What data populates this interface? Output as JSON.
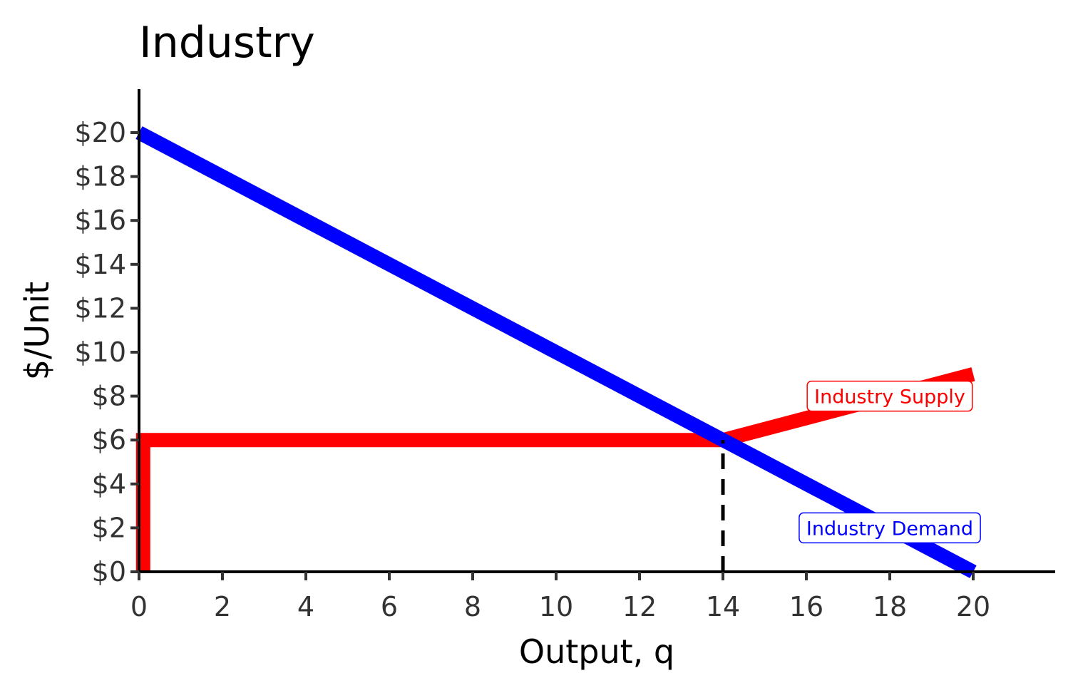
{
  "chart_data": {
    "type": "line",
    "title": "Industry",
    "xlabel": "Output, q",
    "ylabel": "$/Unit",
    "xlim": [
      0,
      22
    ],
    "ylim": [
      0,
      22
    ],
    "x_ticks": [
      0,
      2,
      4,
      6,
      8,
      10,
      12,
      14,
      16,
      18,
      20
    ],
    "y_ticks": [
      0,
      2,
      4,
      6,
      8,
      10,
      12,
      14,
      16,
      18,
      20
    ],
    "y_tick_labels": [
      "$0",
      "$2",
      "$4",
      "$6",
      "$8",
      "$10",
      "$12",
      "$14",
      "$16",
      "$18",
      "$20"
    ],
    "grid": false,
    "legend": "none",
    "series": [
      {
        "name": "Industry Supply",
        "color": "#ff0000",
        "points": [
          [
            0.1,
            0
          ],
          [
            0.1,
            6
          ],
          [
            14,
            6
          ],
          [
            20,
            9
          ]
        ]
      },
      {
        "name": "Industry Demand",
        "color": "#0000ff",
        "points": [
          [
            0,
            20
          ],
          [
            20,
            0
          ]
        ]
      }
    ],
    "annotations": [
      {
        "type": "vline",
        "x": 14,
        "from_y": 0,
        "to_y": 6,
        "style": "dashed",
        "color": "#000000"
      },
      {
        "type": "label",
        "text": "Industry Supply",
        "x": 18,
        "y": 8,
        "color": "#ff0000"
      },
      {
        "type": "label",
        "text": "Industry Demand",
        "x": 18,
        "y": 2,
        "color": "#0000ff"
      }
    ]
  }
}
